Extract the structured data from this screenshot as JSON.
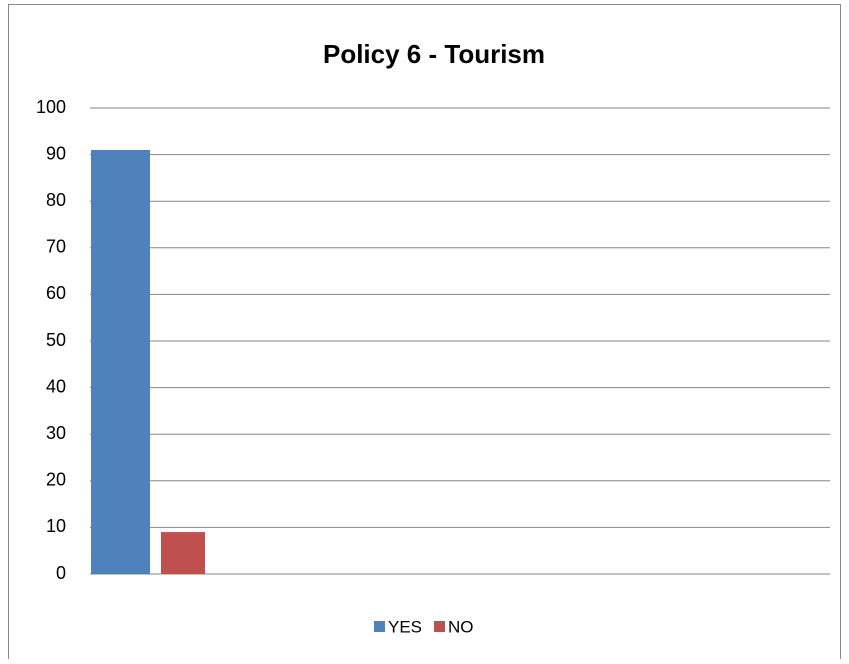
{
  "chart_data": {
    "type": "bar",
    "title": "Policy 6 - Tourism",
    "categories": [
      null
    ],
    "series": [
      {
        "name": "YES",
        "color": "#4f81bd",
        "values": [
          91
        ]
      },
      {
        "name": "NO",
        "color": "#c0504d",
        "values": [
          9
        ]
      }
    ],
    "ylim": [
      0,
      100
    ],
    "yticks": [
      0,
      10,
      20,
      30,
      40,
      50,
      60,
      70,
      80,
      90,
      100
    ],
    "grid": true,
    "legend": "bottom"
  }
}
